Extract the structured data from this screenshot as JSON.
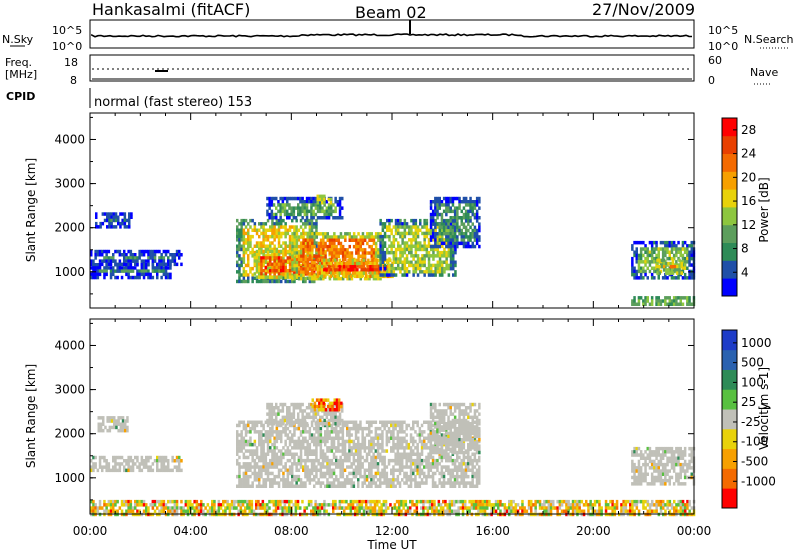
{
  "header": {
    "station": "Hankasalmi (fitACF)",
    "beam": "Beam 02",
    "date": "27/Nov/2009"
  },
  "noise_panel": {
    "left_label": "N.Sky",
    "left_ticks": [
      "10^5",
      "10^0"
    ],
    "right_label": "N.Search",
    "right_ticks": [
      "10^5",
      "10^0"
    ]
  },
  "freq_panel": {
    "left_label_line1": "Freq.",
    "left_label_line2": "[MHz]",
    "left_ticks": [
      "18",
      "8"
    ],
    "right_label": "Nave",
    "right_ticks": [
      "60",
      "0"
    ]
  },
  "cpid": {
    "label": "CPID",
    "text": "normal (fast stereo) 153"
  },
  "power_panel": {
    "ylabel": "Slant Range [km]",
    "yticks": [
      "4000",
      "3000",
      "2000",
      "1000"
    ],
    "colorbar_label": "Power [dB]",
    "colorbar_ticks": [
      "28",
      "24",
      "20",
      "16",
      "12",
      "8",
      "4"
    ],
    "colors": [
      "#0000ff",
      "#1f4fa8",
      "#2e8b57",
      "#5c9e5c",
      "#8dc63f",
      "#e8d20a",
      "#f7a000",
      "#f46a00",
      "#e84000",
      "#ff0000"
    ]
  },
  "velocity_panel": {
    "ylabel": "Slant Range [km]",
    "yticks": [
      "4000",
      "3000",
      "2000",
      "1000"
    ],
    "colorbar_label_line1": "Velocity",
    "colorbar_label_line2": "[m s-1]",
    "colorbar_ticks": [
      "1000",
      "500",
      "100",
      "25",
      "-25",
      "-100",
      "-500",
      "-1000"
    ],
    "colors": [
      "#1e3cc8",
      "#2a62b0",
      "#2e8b57",
      "#58c040",
      "#c0c0b8",
      "#e8d20a",
      "#f7a000",
      "#f46a00",
      "#ff0000"
    ]
  },
  "xaxis": {
    "label": "Time UT",
    "ticks": [
      "00:00",
      "04:00",
      "08:00",
      "12:00",
      "16:00",
      "20:00",
      "00:00"
    ]
  },
  "chart_data": [
    {
      "type": "heatmap",
      "title": "Power",
      "xlabel": "Time UT",
      "ylabel": "Slant Range [km]",
      "x_range_hours": [
        0,
        24
      ],
      "ylim": [
        180,
        4600
      ],
      "colorbar": {
        "label": "Power [dB]",
        "range": [
          0,
          30
        ]
      },
      "regions": [
        {
          "t": [
            0.2,
            1.6
          ],
          "r": [
            2050,
            2350
          ],
          "v": 6
        },
        {
          "t": [
            0.0,
            3.6
          ],
          "r": [
            1200,
            1500
          ],
          "v": 7
        },
        {
          "t": [
            0.0,
            3.2
          ],
          "r": [
            900,
            1200
          ],
          "v": 8
        },
        {
          "t": [
            5.8,
            9.0
          ],
          "r": [
            800,
            2200
          ],
          "v": 16
        },
        {
          "t": [
            6.5,
            9.5
          ],
          "r": [
            850,
            1500
          ],
          "v": 24
        },
        {
          "t": [
            8.0,
            11.5
          ],
          "r": [
            850,
            1900
          ],
          "v": 22
        },
        {
          "t": [
            9.0,
            12.0
          ],
          "r": [
            900,
            1300
          ],
          "v": 26
        },
        {
          "t": [
            11.5,
            14.5
          ],
          "r": [
            900,
            2200
          ],
          "v": 14
        },
        {
          "t": [
            13.5,
            15.5
          ],
          "r": [
            1600,
            2700
          ],
          "v": 8
        },
        {
          "t": [
            7.0,
            10.0
          ],
          "r": [
            2200,
            2700
          ],
          "v": 10
        },
        {
          "t": [
            9.0,
            9.6
          ],
          "r": [
            2600,
            2750
          ],
          "v": 22
        },
        {
          "t": [
            21.5,
            24.0
          ],
          "r": [
            900,
            1700
          ],
          "v": 12
        },
        {
          "t": [
            22.5,
            23.5
          ],
          "r": [
            950,
            1300
          ],
          "v": 22
        },
        {
          "t": [
            21.5,
            24.0
          ],
          "r": [
            250,
            450
          ],
          "v": 18
        }
      ]
    },
    {
      "type": "heatmap",
      "title": "Velocity",
      "xlabel": "Time UT",
      "ylabel": "Slant Range [km]",
      "x_range_hours": [
        0,
        24
      ],
      "ylim": [
        180,
        4600
      ],
      "colorbar": {
        "label": "Velocity [m s-1]",
        "range": [
          -1000,
          1000
        ]
      },
      "regions": [
        {
          "t": [
            0.3,
            1.5
          ],
          "r": [
            2050,
            2400
          ],
          "v": 0
        },
        {
          "t": [
            0.0,
            3.6
          ],
          "r": [
            1200,
            1500
          ],
          "v": 0
        },
        {
          "t": [
            5.8,
            15.5
          ],
          "r": [
            800,
            2300
          ],
          "v": 0
        },
        {
          "t": [
            7.0,
            10.0
          ],
          "r": [
            2200,
            2700
          ],
          "v": 0
        },
        {
          "t": [
            8.8,
            10.0
          ],
          "r": [
            2550,
            2800
          ],
          "v": -200
        },
        {
          "t": [
            13.5,
            15.5
          ],
          "r": [
            1600,
            2700
          ],
          "v": 0
        },
        {
          "t": [
            21.5,
            24.0
          ],
          "r": [
            900,
            1700
          ],
          "v": 0
        },
        {
          "t": [
            0.0,
            24.0
          ],
          "r": [
            200,
            500
          ],
          "v": -60
        }
      ]
    }
  ]
}
